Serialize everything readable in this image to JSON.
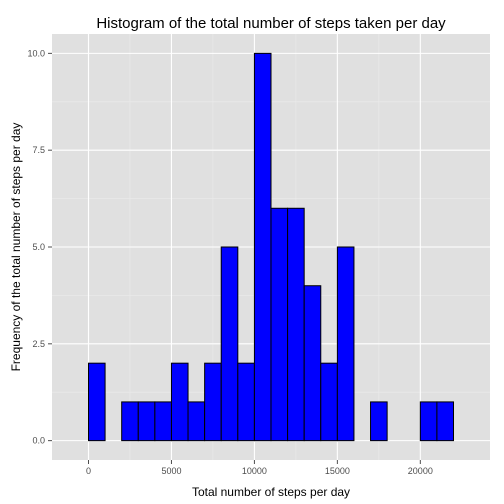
{
  "chart_data": {
    "type": "bar",
    "title": "Histogram of the total number of steps taken per day",
    "xlabel": "Total number of steps per day",
    "ylabel": "Frequency of the total number of steps per day",
    "xlim": [
      -1000,
      23000
    ],
    "ylim": [
      0,
      10
    ],
    "xticks": [
      0,
      5000,
      10000,
      15000,
      20000
    ],
    "xtick_labels": [
      "0",
      "5000",
      "10000",
      "15000",
      "20000"
    ],
    "yticks": [
      0,
      2.5,
      5,
      7.5,
      10
    ],
    "ytick_labels": [
      "0.0",
      "2.5",
      "5.0",
      "7.5",
      "10.0"
    ],
    "bin_width": 1000,
    "bins": [
      {
        "x0": -1000,
        "x1": 0,
        "count": 0
      },
      {
        "x0": 0,
        "x1": 1000,
        "count": 2
      },
      {
        "x0": 1000,
        "x1": 2000,
        "count": 0
      },
      {
        "x0": 2000,
        "x1": 3000,
        "count": 1
      },
      {
        "x0": 3000,
        "x1": 4000,
        "count": 1
      },
      {
        "x0": 4000,
        "x1": 5000,
        "count": 1
      },
      {
        "x0": 5000,
        "x1": 6000,
        "count": 2
      },
      {
        "x0": 6000,
        "x1": 7000,
        "count": 1
      },
      {
        "x0": 7000,
        "x1": 8000,
        "count": 2
      },
      {
        "x0": 8000,
        "x1": 9000,
        "count": 5
      },
      {
        "x0": 9000,
        "x1": 10000,
        "count": 2
      },
      {
        "x0": 10000,
        "x1": 11000,
        "count": 10
      },
      {
        "x0": 11000,
        "x1": 12000,
        "count": 6
      },
      {
        "x0": 12000,
        "x1": 13000,
        "count": 6
      },
      {
        "x0": 13000,
        "x1": 14000,
        "count": 4
      },
      {
        "x0": 14000,
        "x1": 15000,
        "count": 2
      },
      {
        "x0": 15000,
        "x1": 16000,
        "count": 5
      },
      {
        "x0": 16000,
        "x1": 17000,
        "count": 0
      },
      {
        "x0": 17000,
        "x1": 18000,
        "count": 1
      },
      {
        "x0": 18000,
        "x1": 19000,
        "count": 0
      },
      {
        "x0": 19000,
        "x1": 20000,
        "count": 0
      },
      {
        "x0": 20000,
        "x1": 21000,
        "count": 1
      },
      {
        "x0": 21000,
        "x1": 22000,
        "count": 1
      },
      {
        "x0": 22000,
        "x1": 23000,
        "count": 0
      }
    ],
    "grid": true,
    "legend": "none",
    "colors": {
      "bar_fill": "#0000ff",
      "bar_stroke": "#000000",
      "panel_bg": "#e0e0e0",
      "grid_major": "#ffffff",
      "grid_minor": "#ebebeb"
    }
  }
}
